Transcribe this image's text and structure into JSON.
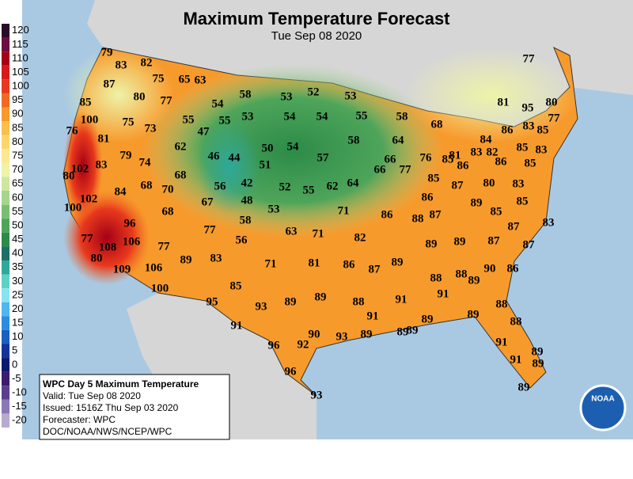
{
  "title": "Maximum Temperature Forecast",
  "subtitle": "Tue Sep 08 2020",
  "legend": {
    "values": [
      120,
      115,
      110,
      105,
      100,
      95,
      90,
      85,
      80,
      75,
      70,
      65,
      60,
      55,
      50,
      45,
      40,
      35,
      30,
      25,
      20,
      15,
      10,
      5,
      0,
      -5,
      -10,
      -15,
      -20
    ],
    "colors": [
      "#2a0a2a",
      "#6b0d3f",
      "#a50016",
      "#d7191c",
      "#e8391d",
      "#f06a22",
      "#f79a2c",
      "#fbbf4b",
      "#fdd66b",
      "#fde891",
      "#eef3a8",
      "#cfe6a0",
      "#a6d48e",
      "#7bbe72",
      "#4ea55a",
      "#2c8b48",
      "#1d7063",
      "#2ea89a",
      "#5fd0c8",
      "#8ae3f0",
      "#4fb7ee",
      "#2b8de0",
      "#1b5fc0",
      "#14349a",
      "#0a1a6e",
      "#3a1d6e",
      "#5a3f8e",
      "#8a78b4",
      "#b7abd0"
    ]
  },
  "forecasts": [
    79,
    83,
    82,
    87,
    75,
    65,
    63,
    77,
    85,
    80,
    77,
    54,
    58,
    53,
    52,
    53,
    81,
    80,
    95,
    100,
    75,
    73,
    55,
    55,
    53,
    54,
    54,
    55,
    58,
    68,
    77,
    86,
    83,
    85,
    76,
    81,
    47,
    58,
    64,
    85,
    84,
    83,
    79,
    74,
    62,
    46,
    44,
    50,
    54,
    57,
    66,
    83,
    82,
    81,
    85,
    86,
    86,
    85,
    102,
    83,
    51,
    66,
    77,
    76,
    80,
    68,
    68,
    70,
    56,
    42,
    52,
    55,
    62,
    64,
    85,
    87,
    80,
    83,
    84,
    102,
    67,
    48,
    53,
    71,
    86,
    86,
    89,
    85,
    100,
    68,
    58,
    88,
    87,
    85,
    83,
    96,
    77,
    63,
    71,
    82,
    87,
    77,
    106,
    108,
    77,
    56,
    89,
    89,
    87,
    87,
    80,
    89,
    83,
    71,
    81,
    86,
    87,
    89,
    90,
    86,
    109,
    106,
    88,
    89,
    88,
    100,
    85,
    91,
    91,
    95,
    93,
    89,
    89,
    88,
    88,
    91,
    89,
    89,
    88,
    91,
    90,
    93,
    89,
    89,
    89,
    96,
    92,
    91,
    89,
    91,
    89,
    96,
    93,
    89
  ],
  "info": [
    "WPC Day 5 Maximum Temperature",
    "Valid: Tue Sep 08 2020",
    "Issued: 1516Z Thu Sep 03 2020",
    "Forecaster: WPC",
    "DOC/NOAA/NWS/NCEP/WPC"
  ],
  "logo": "NOAA"
}
